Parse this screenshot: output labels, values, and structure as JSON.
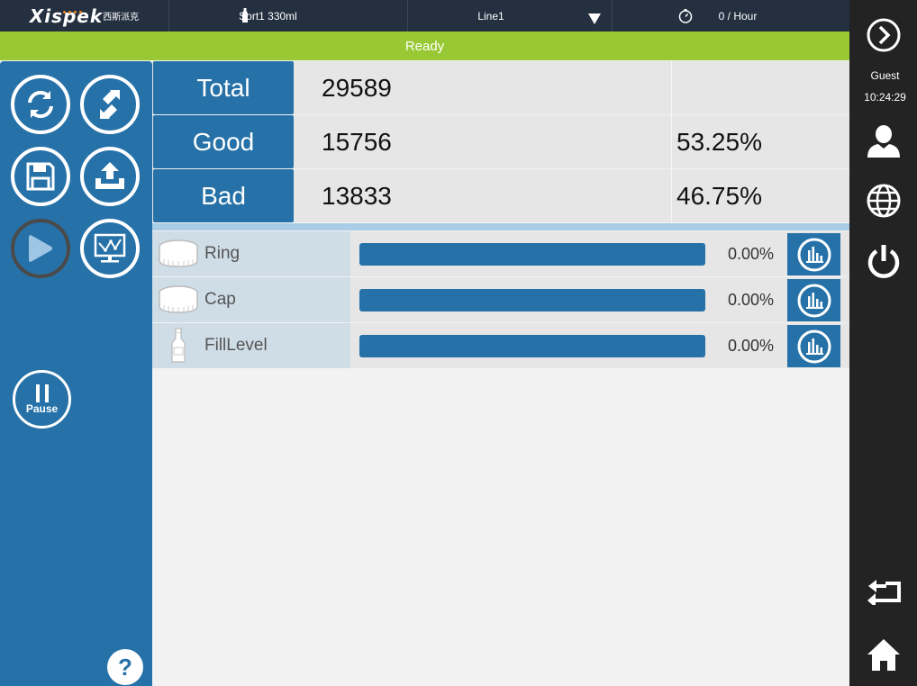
{
  "header": {
    "logo_text": "Xispek",
    "logo_sub": "西斯派克",
    "product": "Sort1 330ml",
    "line": "Line1",
    "rate": "0 / Hour"
  },
  "status": {
    "text": "Ready",
    "color": "#98c934"
  },
  "stats": {
    "total": {
      "label": "Total",
      "value": "29589",
      "percent": ""
    },
    "good": {
      "label": "Good",
      "value": "15756",
      "percent": "53.25%"
    },
    "bad": {
      "label": "Bad",
      "value": "13833",
      "percent": "46.75%"
    }
  },
  "defects": [
    {
      "name": "Ring",
      "icon": "ring-icon",
      "percent": "0.00%"
    },
    {
      "name": "Cap",
      "icon": "cap-icon",
      "percent": "0.00%"
    },
    {
      "name": "FillLevel",
      "icon": "bottle-icon",
      "percent": "0.00%"
    }
  ],
  "left_panel": {
    "pause_label": "Pause",
    "help_label": "?"
  },
  "user": {
    "name": "Guest",
    "time": "10:24:29"
  },
  "colors": {
    "accent": "#2672a8",
    "dark": "#232323",
    "ready": "#98c934"
  }
}
